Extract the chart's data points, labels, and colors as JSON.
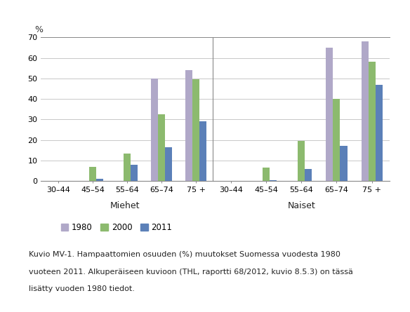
{
  "categories": [
    "30–44",
    "45–54",
    "55–64",
    "65–74",
    "75 +"
  ],
  "years": [
    "1980",
    "2000",
    "2011"
  ],
  "colors": [
    "#b0a8c8",
    "#8cba6e",
    "#5b80b8"
  ],
  "miehet": {
    "1980": [
      0,
      0,
      0,
      50,
      54
    ],
    "2000": [
      0,
      7,
      13.5,
      32.5,
      49.5
    ],
    "2011": [
      0,
      1,
      8,
      16.5,
      29
    ]
  },
  "naiset": {
    "1980": [
      0,
      0,
      0,
      65,
      68
    ],
    "2000": [
      0,
      6.5,
      19.5,
      40,
      58
    ],
    "2011": [
      0,
      0.5,
      6,
      17,
      47
    ]
  },
  "ylim": [
    0,
    70
  ],
  "yticks": [
    0,
    10,
    20,
    30,
    40,
    50,
    60,
    70
  ],
  "legend_labels": [
    "1980",
    "2000",
    "2011"
  ],
  "caption_line1": "Kuvio MV-1. Hampaattomien osuuden (%) muutokset Suomessa vuodesta 1980",
  "caption_line2": "vuoteen 2011. Alkuperäiseen kuvioon (THL, raportti 68/2012, kuvio 8.5.3) on tässä",
  "caption_line3": "lisätty vuoden 1980 tiedot.",
  "bg_color": "#ffffff",
  "grid_color": "#c8c8c8",
  "bar_width": 0.2,
  "spine_color": "#888888"
}
